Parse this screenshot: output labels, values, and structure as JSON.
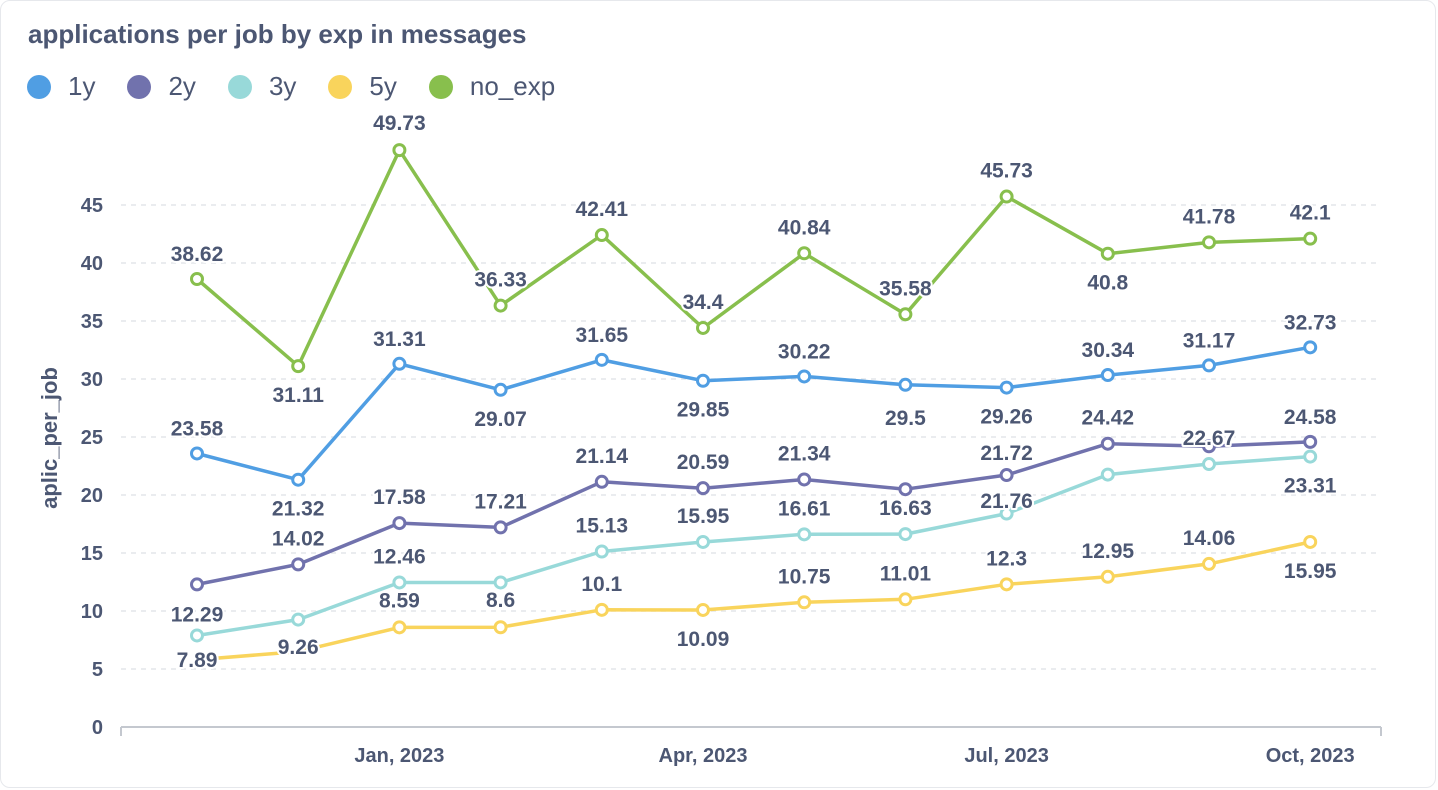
{
  "chart_data": {
    "type": "line",
    "title": "applications per job by exp in messages",
    "ylabel": "aplic_per_job",
    "xlabel": "",
    "ylim": [
      0,
      50
    ],
    "yticks": [
      0,
      5,
      10,
      15,
      20,
      25,
      30,
      35,
      40,
      45
    ],
    "x": [
      "2022-11",
      "2022-12",
      "2023-01",
      "2023-02",
      "2023-03",
      "2023-04",
      "2023-05",
      "2023-06",
      "2023-07",
      "2023-08",
      "2023-09",
      "2023-10"
    ],
    "xtick_labels": [
      {
        "index": 2,
        "label": "Jan, 2023"
      },
      {
        "index": 5,
        "label": "Apr, 2023"
      },
      {
        "index": 8,
        "label": "Jul, 2023"
      },
      {
        "index": 11,
        "label": "Oct, 2023"
      }
    ],
    "grid": "horizontal dashed",
    "legend_position": "top-left",
    "series": [
      {
        "name": "1y",
        "color": "#509ee3",
        "values": [
          23.58,
          21.32,
          31.31,
          29.07,
          31.65,
          29.85,
          30.22,
          29.5,
          29.26,
          30.34,
          31.17,
          32.73
        ],
        "labels": [
          "23.58",
          "21.32",
          "31.31",
          "29.07",
          "31.65",
          "29.85",
          "30.22",
          "29.5",
          "29.26",
          "30.34",
          "31.17",
          "32.73"
        ]
      },
      {
        "name": "2y",
        "color": "#7172ad",
        "values": [
          12.29,
          14.02,
          17.58,
          17.21,
          21.14,
          20.59,
          21.34,
          20.5,
          21.72,
          24.42,
          24.2,
          24.58
        ],
        "labels": [
          "12.29",
          "14.02",
          "17.58",
          "17.21",
          "21.14",
          "20.59",
          "21.34",
          "",
          "21.72",
          "24.42",
          "",
          "24.58"
        ]
      },
      {
        "name": "3y",
        "color": "#98d9d9",
        "values": [
          7.89,
          9.26,
          12.46,
          12.46,
          15.13,
          15.95,
          16.61,
          16.63,
          18.4,
          21.76,
          22.67,
          23.31
        ],
        "labels": [
          "7.89",
          "9.26",
          "12.46",
          "",
          "15.13",
          "15.95",
          "16.61",
          "16.63",
          "",
          "21.76",
          "22.67",
          "23.31"
        ]
      },
      {
        "name": "5y",
        "color": "#f9d45c",
        "values": [
          5.8,
          6.5,
          8.59,
          8.6,
          10.1,
          10.09,
          10.75,
          11.01,
          12.3,
          12.95,
          14.06,
          15.95
        ],
        "labels": [
          "",
          "",
          "8.59",
          "8.6",
          "10.1",
          "10.09",
          "10.75",
          "11.01",
          "12.3",
          "12.95",
          "14.06",
          "15.95"
        ]
      },
      {
        "name": "no_exp",
        "color": "#88bf4d",
        "values": [
          38.62,
          31.11,
          49.73,
          36.33,
          42.41,
          34.4,
          40.84,
          35.58,
          45.73,
          40.8,
          41.78,
          42.1
        ],
        "labels": [
          "38.62",
          "31.11",
          "49.73",
          "36.33",
          "42.41",
          "34.4",
          "40.84",
          "35.58",
          "45.73",
          "40.8",
          "41.78",
          "42.1"
        ]
      }
    ]
  }
}
